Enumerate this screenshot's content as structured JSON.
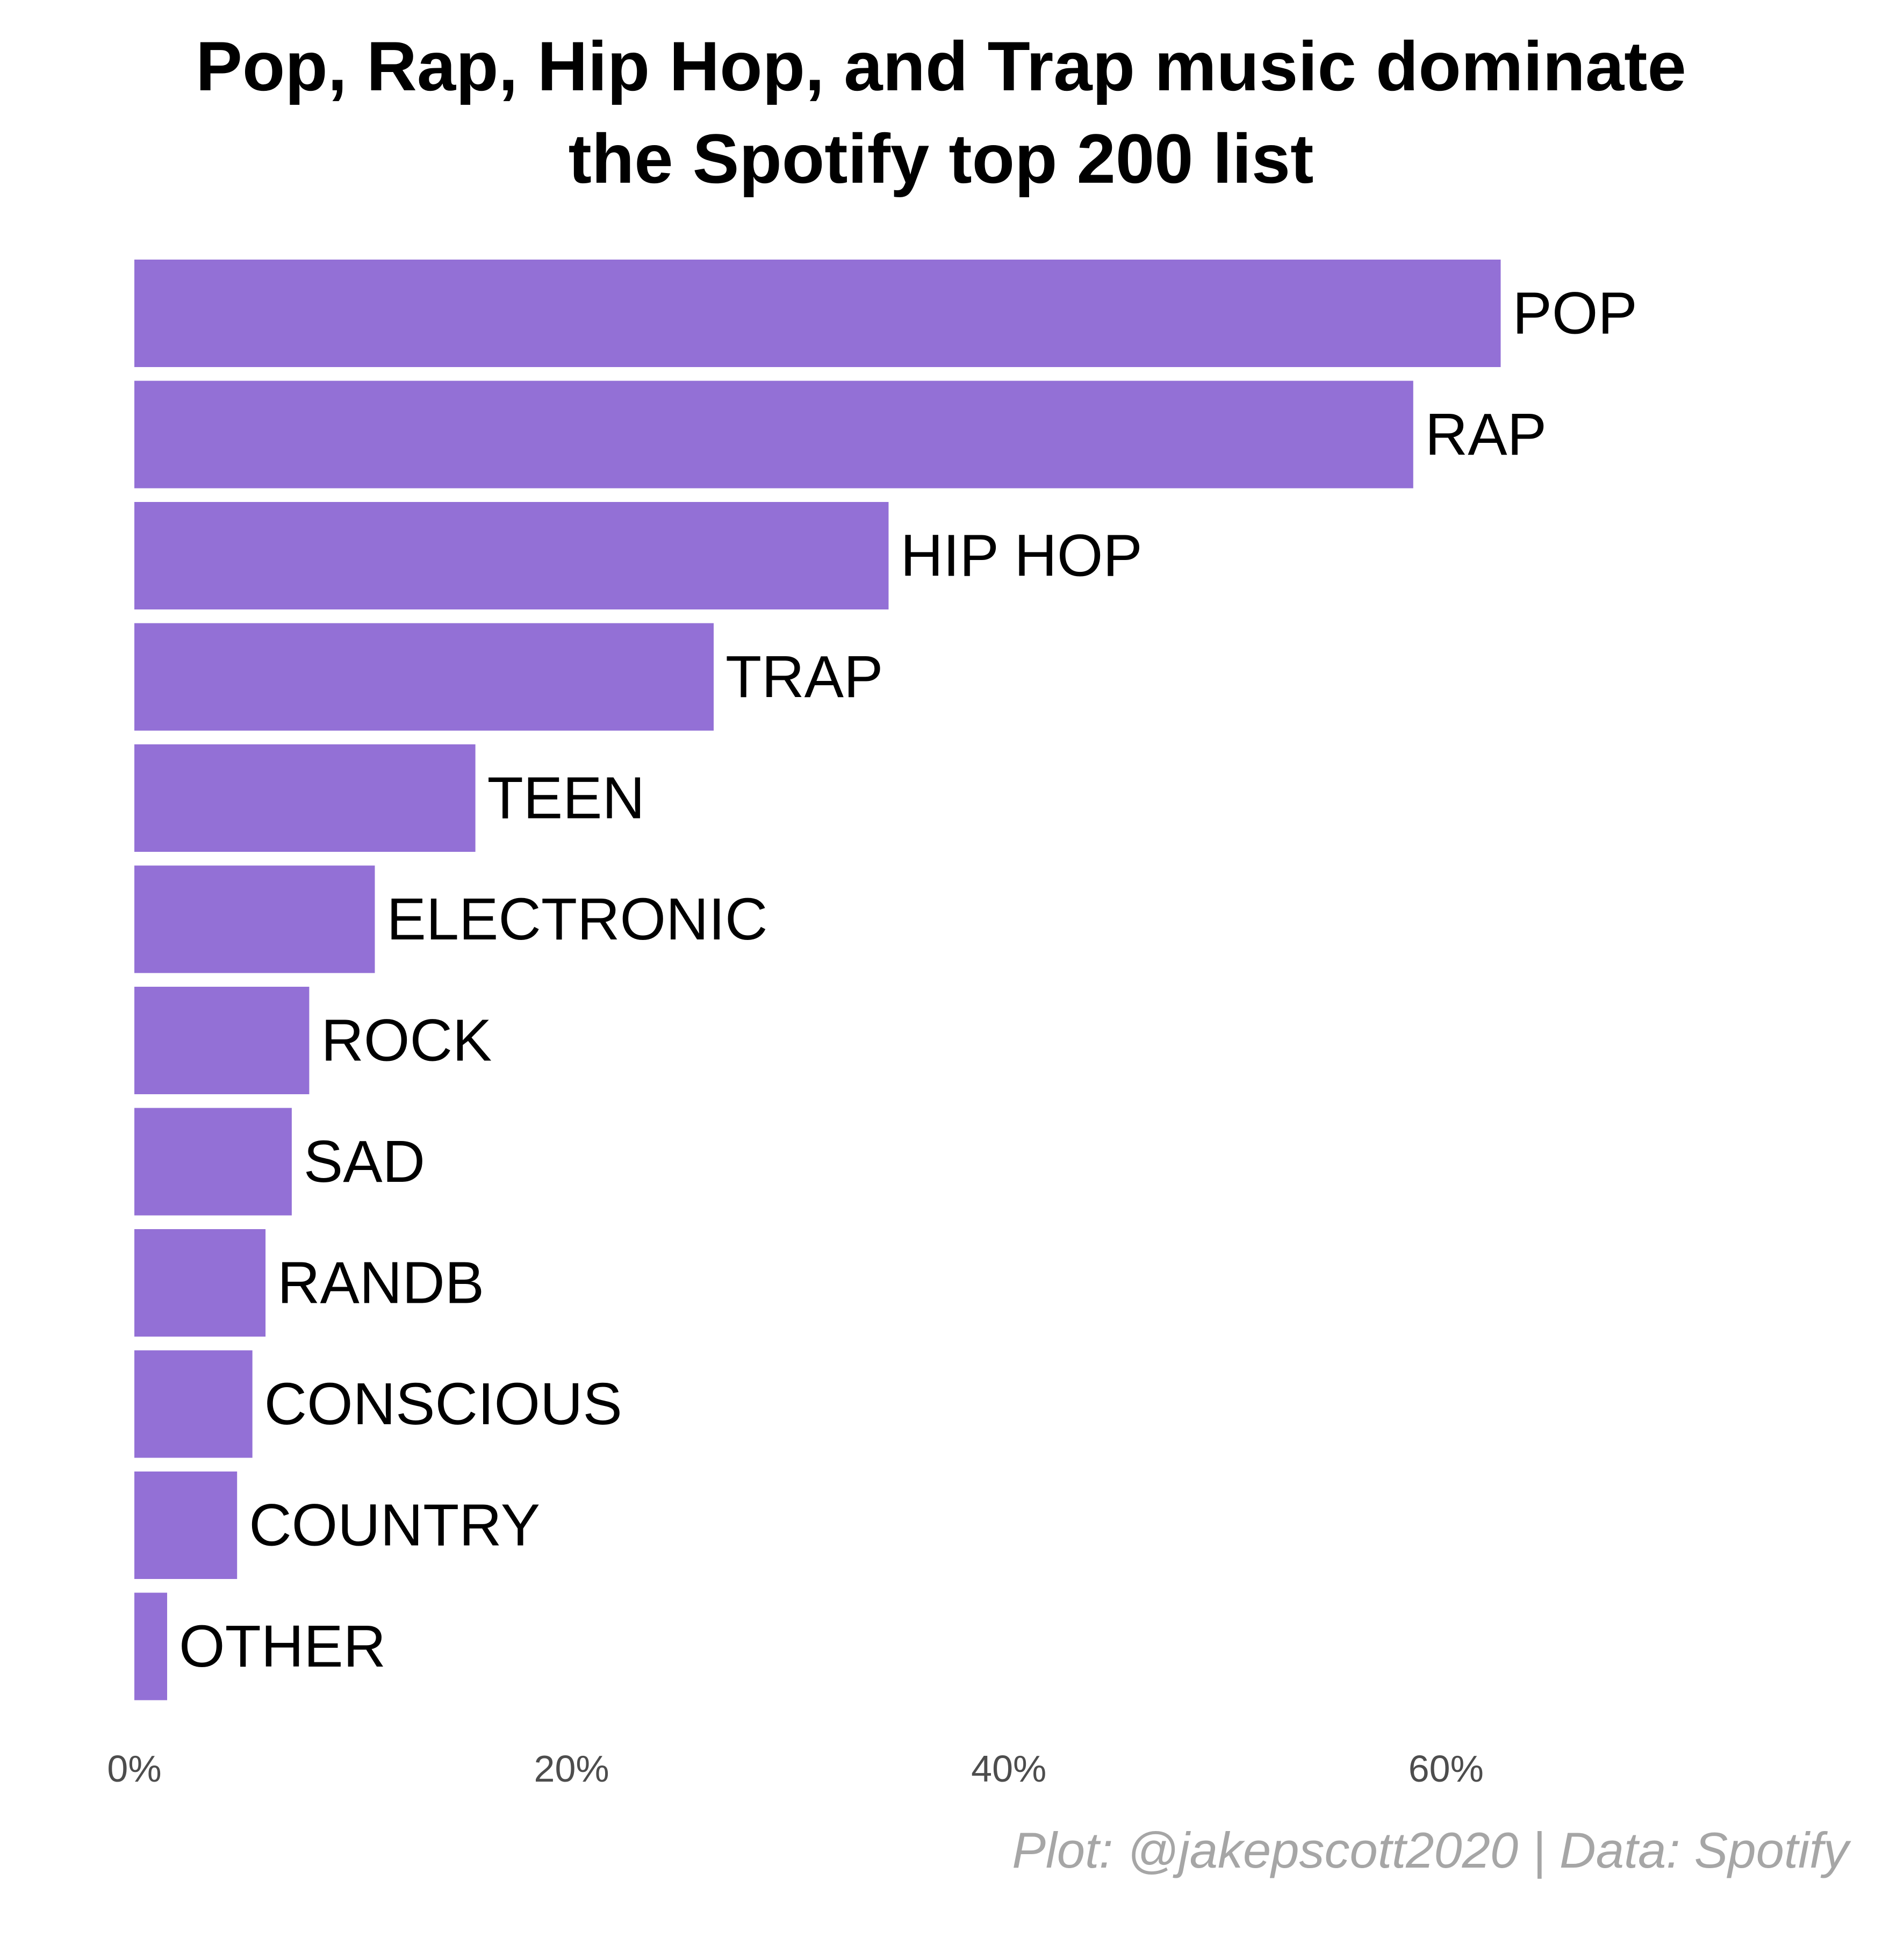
{
  "chart_data": {
    "type": "bar",
    "orientation": "horizontal",
    "title": [
      "Pop, Rap, Hip Hop, and Trap music dominate",
      "the Spotify top 200 list"
    ],
    "caption": "Plot: @jakepscott2020 | Data: Spotify",
    "categories": [
      "POP",
      "RAP",
      "HIP HOP",
      "TRAP",
      "TEEN",
      "ELECTRONIC",
      "ROCK",
      "SAD",
      "RANDB",
      "CONSCIOUS",
      "COUNTRY",
      "OTHER"
    ],
    "values": [
      62.5,
      58.5,
      34.5,
      26.5,
      15.6,
      11.0,
      8.0,
      7.2,
      6.0,
      5.4,
      4.7,
      1.5
    ],
    "value_unit": "%",
    "xlim": [
      0,
      75
    ],
    "xticks": [
      0,
      20,
      40,
      60
    ],
    "xtick_labels": [
      "0%",
      "20%",
      "40%",
      "60%"
    ],
    "xlabel": "",
    "ylabel": "",
    "grid": false,
    "legend": "none",
    "bar_color": "#9370d6"
  }
}
